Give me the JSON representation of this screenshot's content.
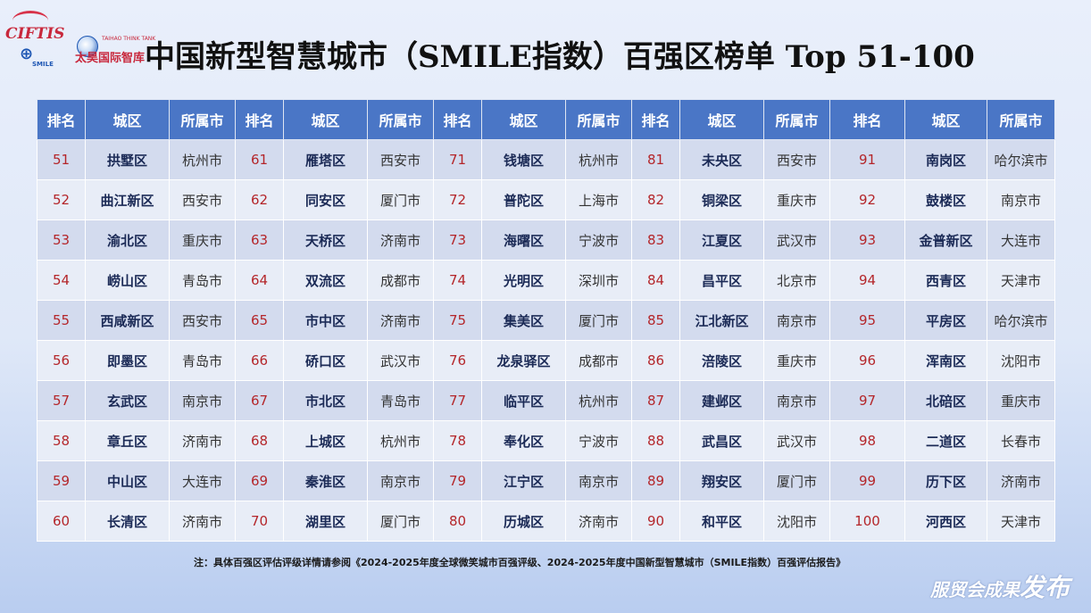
{
  "title": "中国新型智慧城市（SMILE指数）百强区榜单 Top 51-100",
  "logos": {
    "cifits": "CIFTIS",
    "taihao": "太昊国际智库",
    "taihao_small": "TAIHAO THINK TANK",
    "smile": "SMILE"
  },
  "headers": [
    "排名",
    "城区",
    "所属市",
    "排名",
    "城区",
    "所属市",
    "排名",
    "城区",
    "所属市",
    "排名",
    "城区",
    "所属市",
    "排名",
    "城区",
    "所属市"
  ],
  "rows": [
    [
      {
        "rank": "51",
        "district": "拱墅区",
        "city": "杭州市"
      },
      {
        "rank": "61",
        "district": "雁塔区",
        "city": "西安市"
      },
      {
        "rank": "71",
        "district": "钱塘区",
        "city": "杭州市"
      },
      {
        "rank": "81",
        "district": "未央区",
        "city": "西安市"
      },
      {
        "rank": "91",
        "district": "南岗区",
        "city": "哈尔滨市"
      }
    ],
    [
      {
        "rank": "52",
        "district": "曲江新区",
        "city": "西安市"
      },
      {
        "rank": "62",
        "district": "同安区",
        "city": "厦门市"
      },
      {
        "rank": "72",
        "district": "普陀区",
        "city": "上海市"
      },
      {
        "rank": "82",
        "district": "铜梁区",
        "city": "重庆市"
      },
      {
        "rank": "92",
        "district": "鼓楼区",
        "city": "南京市"
      }
    ],
    [
      {
        "rank": "53",
        "district": "渝北区",
        "city": "重庆市"
      },
      {
        "rank": "63",
        "district": "天桥区",
        "city": "济南市"
      },
      {
        "rank": "73",
        "district": "海曙区",
        "city": "宁波市"
      },
      {
        "rank": "83",
        "district": "江夏区",
        "city": "武汉市"
      },
      {
        "rank": "93",
        "district": "金普新区",
        "city": "大连市"
      }
    ],
    [
      {
        "rank": "54",
        "district": "崂山区",
        "city": "青岛市"
      },
      {
        "rank": "64",
        "district": "双流区",
        "city": "成都市"
      },
      {
        "rank": "74",
        "district": "光明区",
        "city": "深圳市"
      },
      {
        "rank": "84",
        "district": "昌平区",
        "city": "北京市"
      },
      {
        "rank": "94",
        "district": "西青区",
        "city": "天津市"
      }
    ],
    [
      {
        "rank": "55",
        "district": "西咸新区",
        "city": "西安市"
      },
      {
        "rank": "65",
        "district": "市中区",
        "city": "济南市"
      },
      {
        "rank": "75",
        "district": "集美区",
        "city": "厦门市"
      },
      {
        "rank": "85",
        "district": "江北新区",
        "city": "南京市"
      },
      {
        "rank": "95",
        "district": "平房区",
        "city": "哈尔滨市"
      }
    ],
    [
      {
        "rank": "56",
        "district": "即墨区",
        "city": "青岛市"
      },
      {
        "rank": "66",
        "district": "硚口区",
        "city": "武汉市"
      },
      {
        "rank": "76",
        "district": "龙泉驿区",
        "city": "成都市"
      },
      {
        "rank": "86",
        "district": "涪陵区",
        "city": "重庆市"
      },
      {
        "rank": "96",
        "district": "浑南区",
        "city": "沈阳市"
      }
    ],
    [
      {
        "rank": "57",
        "district": "玄武区",
        "city": "南京市"
      },
      {
        "rank": "67",
        "district": "市北区",
        "city": "青岛市"
      },
      {
        "rank": "77",
        "district": "临平区",
        "city": "杭州市"
      },
      {
        "rank": "87",
        "district": "建邺区",
        "city": "南京市"
      },
      {
        "rank": "97",
        "district": "北碚区",
        "city": "重庆市"
      }
    ],
    [
      {
        "rank": "58",
        "district": "章丘区",
        "city": "济南市"
      },
      {
        "rank": "68",
        "district": "上城区",
        "city": "杭州市"
      },
      {
        "rank": "78",
        "district": "奉化区",
        "city": "宁波市"
      },
      {
        "rank": "88",
        "district": "武昌区",
        "city": "武汉市"
      },
      {
        "rank": "98",
        "district": "二道区",
        "city": "长春市"
      }
    ],
    [
      {
        "rank": "59",
        "district": "中山区",
        "city": "大连市"
      },
      {
        "rank": "69",
        "district": "秦淮区",
        "city": "南京市"
      },
      {
        "rank": "79",
        "district": "江宁区",
        "city": "南京市"
      },
      {
        "rank": "89",
        "district": "翔安区",
        "city": "厦门市"
      },
      {
        "rank": "99",
        "district": "历下区",
        "city": "济南市"
      }
    ],
    [
      {
        "rank": "60",
        "district": "长清区",
        "city": "济南市"
      },
      {
        "rank": "70",
        "district": "湖里区",
        "city": "厦门市"
      },
      {
        "rank": "80",
        "district": "历城区",
        "city": "济南市"
      },
      {
        "rank": "90",
        "district": "和平区",
        "city": "沈阳市"
      },
      {
        "rank": "100",
        "district": "河西区",
        "city": "天津市"
      }
    ]
  ],
  "note": "注：具体百强区评估评级详情请参阅《2024-2025年度全球微笑城市百强评级、2024-2025年度中国新型智慧城市（SMILE指数）百强评估报告》",
  "footer": {
    "brand_prefix": "服贸会成果",
    "brand_suffix": "发布"
  },
  "colors": {
    "header_bg": "#4a76c6",
    "rank_text": "#b4262a",
    "district_text": "#1b2a56",
    "row_odd": "#d3dbee",
    "row_even": "#e8edf7"
  }
}
